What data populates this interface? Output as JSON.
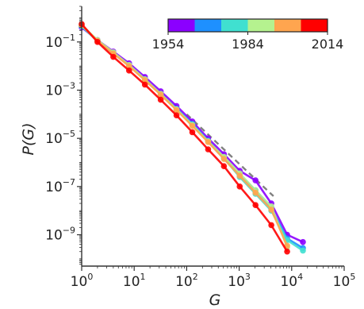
{
  "chart_data": {
    "type": "line",
    "xlabel": "G",
    "ylabel": "P(G)",
    "x_scale": "log",
    "y_scale": "log",
    "xlim": [
      1,
      100000
    ],
    "ylim": [
      5e-11,
      3
    ],
    "x_ticks": [
      {
        "base": "10",
        "exp": "0",
        "value": 1
      },
      {
        "base": "10",
        "exp": "1",
        "value": 10
      },
      {
        "base": "10",
        "exp": "2",
        "value": 100
      },
      {
        "base": "10",
        "exp": "3",
        "value": 1000
      },
      {
        "base": "10",
        "exp": "4",
        "value": 10000
      },
      {
        "base": "10",
        "exp": "5",
        "value": 100000
      }
    ],
    "y_ticks": [
      {
        "base": "10",
        "exp": "−1",
        "value": 0.1
      },
      {
        "base": "10",
        "exp": "−3",
        "value": 0.001
      },
      {
        "base": "10",
        "exp": "−5",
        "value": 1e-05
      },
      {
        "base": "10",
        "exp": "−7",
        "value": 1e-07
      },
      {
        "base": "10",
        "exp": "−9",
        "value": 1e-09
      }
    ],
    "colorbar": {
      "colors": [
        "#8b00ff",
        "#1e90ff",
        "#40e0d0",
        "#b5f28f",
        "#ffa54f",
        "#ff0000"
      ],
      "tick_labels": [
        "1954",
        "1984",
        "2014"
      ]
    },
    "reference_line": {
      "style": "dashed",
      "color": "#808080",
      "x": [
        100,
        4500
      ],
      "y": [
        0.0001,
        4e-08
      ]
    },
    "series": [
      {
        "color": "#8b00ff",
        "x": [
          1,
          2,
          4,
          8,
          16,
          32,
          64,
          128,
          256,
          512,
          1024,
          2048,
          4096,
          8192,
          16384
        ],
        "y": [
          0.4,
          0.12,
          0.04,
          0.013,
          0.0035,
          0.0009,
          0.00022,
          5e-05,
          1e-05,
          2.2e-06,
          4.5e-07,
          1.8e-07,
          2e-08,
          1e-09,
          5e-10
        ]
      },
      {
        "color": "#1e90ff",
        "x": [
          1,
          2,
          4,
          8,
          16,
          32,
          64,
          128,
          256,
          512,
          1024,
          2048,
          4096,
          8192,
          16384
        ],
        "y": [
          0.45,
          0.11,
          0.035,
          0.011,
          0.0028,
          0.0007,
          0.00017,
          4e-05,
          8e-06,
          1.6e-06,
          3e-07,
          7e-08,
          1.2e-08,
          7e-10,
          2.8e-10
        ]
      },
      {
        "color": "#40e0d0",
        "x": [
          1,
          2,
          4,
          8,
          16,
          32,
          64,
          128,
          256,
          512,
          1024,
          2048,
          4096,
          8192,
          16384
        ],
        "y": [
          0.45,
          0.11,
          0.035,
          0.011,
          0.0028,
          0.0007,
          0.00016,
          3.8e-05,
          7.5e-06,
          1.5e-06,
          2.5e-07,
          5e-08,
          1e-08,
          6e-10,
          2.2e-10
        ]
      },
      {
        "color": "#b5f28f",
        "x": [
          1,
          2,
          4,
          8,
          16,
          32,
          64,
          128,
          256,
          512,
          1024,
          2048,
          4096,
          8192
        ],
        "y": [
          0.5,
          0.12,
          0.037,
          0.011,
          0.0028,
          0.0007,
          0.00016,
          3.5e-05,
          7.5e-06,
          1.7e-06,
          3.5e-07,
          7e-08,
          1.5e-08,
          3e-10
        ]
      },
      {
        "color": "#ffa54f",
        "x": [
          1,
          2,
          4,
          8,
          16,
          32,
          64,
          128,
          256,
          512,
          1024,
          2048,
          4096,
          8192
        ],
        "y": [
          0.5,
          0.11,
          0.033,
          0.01,
          0.0026,
          0.00065,
          0.00015,
          3.3e-05,
          7e-06,
          1.4e-06,
          2.8e-07,
          5.5e-08,
          1.1e-08,
          3.5e-10
        ]
      },
      {
        "color": "#ff0000",
        "x": [
          1,
          2,
          4,
          8,
          16,
          32,
          64,
          128,
          256,
          512,
          1024,
          2048,
          4096,
          8192
        ],
        "y": [
          0.55,
          0.1,
          0.024,
          0.0065,
          0.0017,
          0.0004,
          9e-05,
          1.8e-05,
          3.5e-06,
          7e-07,
          1e-07,
          1.7e-08,
          2.5e-09,
          2e-10
        ]
      }
    ]
  }
}
